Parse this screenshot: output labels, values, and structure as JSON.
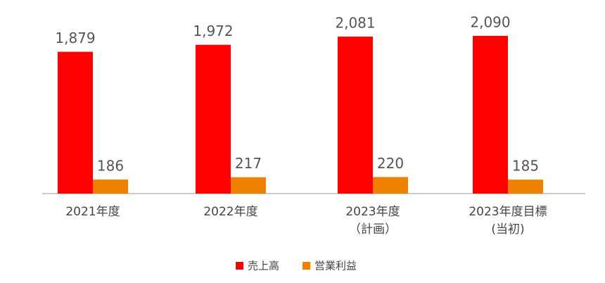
{
  "chart_data": {
    "type": "bar",
    "categories": [
      [
        "2021年度"
      ],
      [
        "2022年度"
      ],
      [
        "2023年度",
        "（計画）"
      ],
      [
        "2023年度目標",
        "(当初)"
      ]
    ],
    "series": [
      {
        "name": "売上高",
        "color": "#ff0000",
        "values": [
          1879,
          1972,
          2081,
          2090
        ],
        "value_labels": [
          "1,879",
          "1,972",
          "2,081",
          "2,090"
        ]
      },
      {
        "name": "営業利益",
        "color": "#f08000",
        "values": [
          186,
          217,
          220,
          185
        ]
      }
    ]
  }
}
